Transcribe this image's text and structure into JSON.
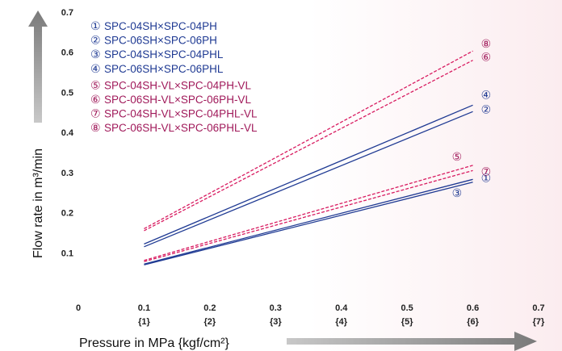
{
  "chart_data": {
    "type": "line",
    "xlabel": "Pressure in MPa {kgf/cm²}",
    "ylabel": "Flow rate in m³/min",
    "xlim": [
      0,
      0.7
    ],
    "ylim": [
      0,
      0.7
    ],
    "x_ticks": [
      {
        "value": 0,
        "label": "0",
        "sublabel": ""
      },
      {
        "value": 0.1,
        "label": "0.1",
        "sublabel": "{1}"
      },
      {
        "value": 0.2,
        "label": "0.2",
        "sublabel": "{2}"
      },
      {
        "value": 0.3,
        "label": "0.3",
        "sublabel": "{3}"
      },
      {
        "value": 0.4,
        "label": "0.4",
        "sublabel": "{4}"
      },
      {
        "value": 0.5,
        "label": "0.5",
        "sublabel": "{5}"
      },
      {
        "value": 0.6,
        "label": "0.6",
        "sublabel": "{6}"
      },
      {
        "value": 0.7,
        "label": "0.7",
        "sublabel": "{7}"
      }
    ],
    "y_ticks": [
      {
        "value": 0.1,
        "label": "0.1"
      },
      {
        "value": 0.2,
        "label": "0.2"
      },
      {
        "value": 0.3,
        "label": "0.3"
      },
      {
        "value": 0.4,
        "label": "0.4"
      },
      {
        "value": 0.5,
        "label": "0.5"
      },
      {
        "value": 0.6,
        "label": "0.6"
      },
      {
        "value": 0.7,
        "label": "0.7"
      }
    ],
    "grid": false,
    "legend_position": "top-left",
    "series": [
      {
        "marker": "①",
        "name": "SPC-04SH×SPC-04PH",
        "color": "#1f3a93",
        "style": "solid",
        "x": [
          0.1,
          0.6
        ],
        "y": [
          0.072,
          0.283
        ]
      },
      {
        "marker": "②",
        "name": "SPC-06SH×SPC-06PH",
        "color": "#1f3a93",
        "style": "solid",
        "x": [
          0.1,
          0.6
        ],
        "y": [
          0.115,
          0.452
        ]
      },
      {
        "marker": "③",
        "name": "SPC-04SH×SPC-04PHL",
        "color": "#1f3a93",
        "style": "solid",
        "x": [
          0.1,
          0.6
        ],
        "y": [
          0.07,
          0.276
        ]
      },
      {
        "marker": "④",
        "name": "SPC-06SH×SPC-06PHL",
        "color": "#1f3a93",
        "style": "solid",
        "x": [
          0.1,
          0.6
        ],
        "y": [
          0.122,
          0.468
        ]
      },
      {
        "marker": "⑤",
        "name": "SPC-04SH-VL×SPC-04PH-VL",
        "color": "#d81b60",
        "style": "dashed",
        "x": [
          0.1,
          0.6
        ],
        "y": [
          0.081,
          0.318
        ]
      },
      {
        "marker": "⑥",
        "name": "SPC-06SH-VL×SPC-06PH-VL",
        "color": "#d81b60",
        "style": "dashed",
        "x": [
          0.1,
          0.6
        ],
        "y": [
          0.155,
          0.58
        ]
      },
      {
        "marker": "⑦",
        "name": "SPC-04SH-VL×SPC-04PHL-VL",
        "color": "#d81b60",
        "style": "dashed",
        "x": [
          0.1,
          0.6
        ],
        "y": [
          0.078,
          0.305
        ]
      },
      {
        "marker": "⑧",
        "name": "SPC-06SH-VL×SPC-06PHL-VL",
        "color": "#d81b60",
        "style": "dashed",
        "x": [
          0.1,
          0.6
        ],
        "y": [
          0.16,
          0.603
        ]
      }
    ],
    "legend_colors": {
      "group_a": "#1f3a93",
      "group_b": "#a0195a"
    },
    "arrow_color": "#8c8c8c"
  }
}
